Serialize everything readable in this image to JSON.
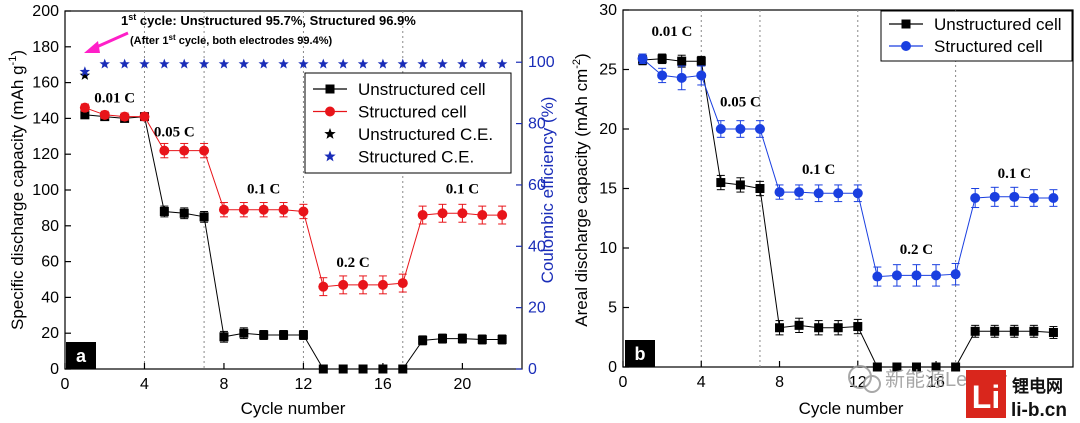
{
  "chart_data": [
    {
      "panel": "a",
      "type": "line",
      "xlabel": "Cycle number",
      "ylabel": "Specific discharge capacity (mAh g-1)",
      "ylabel_parts": [
        "Specific discharge capacity (mAh g",
        "-1",
        ")"
      ],
      "y2label": "Coulombic efficiency (%)",
      "xlim": [
        0,
        23
      ],
      "ylim": [
        0,
        200
      ],
      "y2lim": [
        0,
        116.7
      ],
      "xticks": [
        0,
        4,
        8,
        12,
        16,
        20
      ],
      "yticks": [
        0,
        20,
        40,
        60,
        80,
        100,
        120,
        140,
        160,
        180,
        200
      ],
      "y2ticks": [
        0,
        20,
        40,
        60,
        80,
        100
      ],
      "dividers": [
        4,
        7,
        12,
        17
      ],
      "rate_labels": [
        {
          "text": "0.01 C",
          "x": 2.5,
          "y": 149
        },
        {
          "text": "0.05 C",
          "x": 5.5,
          "y": 130
        },
        {
          "text": "0.1 C",
          "x": 10,
          "y": 98
        },
        {
          "text": "0.2 C",
          "x": 14.5,
          "y": 57
        },
        {
          "text": "0.1 C",
          "x": 20,
          "y": 98
        }
      ],
      "annotation": {
        "line1_parts": [
          "1",
          "st",
          " cycle: Unstructured 95.7%, Structured 96.9%"
        ],
        "line2_parts": [
          "(After 1",
          "st",
          " cycle, both electrodes 99.4%)"
        ]
      },
      "series": [
        {
          "name": "Unstructured cell",
          "axis": "left",
          "color": "#000000",
          "marker": "square",
          "x": [
            1,
            2,
            3,
            4,
            5,
            6,
            7,
            8,
            9,
            10,
            11,
            12,
            13,
            14,
            15,
            16,
            17,
            18,
            19,
            20,
            21,
            22
          ],
          "y": [
            142,
            141,
            140,
            141,
            88,
            87,
            85,
            18,
            20,
            19,
            19,
            19,
            0,
            0,
            0,
            0,
            0,
            16,
            17,
            17,
            16.5,
            16.5
          ],
          "err": [
            2,
            2,
            2,
            2,
            3,
            3,
            3,
            3,
            3,
            2.5,
            2.5,
            2.5,
            1,
            1,
            1,
            1,
            1,
            2.5,
            2.5,
            2.5,
            2.5,
            2.5
          ]
        },
        {
          "name": "Structured cell",
          "axis": "left",
          "color": "#e8141a",
          "marker": "circle",
          "x": [
            1,
            2,
            3,
            4,
            5,
            6,
            7,
            8,
            9,
            10,
            11,
            12,
            13,
            14,
            15,
            16,
            17,
            18,
            19,
            20,
            21,
            22
          ],
          "y": [
            146,
            142,
            141,
            141,
            122,
            122,
            122,
            89,
            89,
            89,
            89,
            88,
            46,
            47,
            47,
            47,
            48,
            86,
            87,
            87,
            86,
            86
          ],
          "err": [
            2,
            2,
            2,
            2,
            4,
            4,
            4,
            4,
            4,
            4,
            4,
            4,
            5,
            5,
            5,
            5,
            5,
            5,
            5,
            5,
            5,
            5
          ]
        },
        {
          "name": "Unstructured C.E.",
          "axis": "right",
          "color": "#000000",
          "marker": "star",
          "x": [
            1
          ],
          "y": [
            95.7
          ]
        },
        {
          "name": "Structured C.E.",
          "axis": "right",
          "color": "#1a2db8",
          "marker": "star",
          "x": [
            1,
            2,
            3,
            4,
            5,
            6,
            7,
            8,
            9,
            10,
            11,
            12,
            13,
            14,
            15,
            16,
            17,
            18,
            19,
            20,
            21,
            22
          ],
          "y": [
            96.9,
            99.4,
            99.4,
            99.4,
            99.4,
            99.4,
            99.4,
            99.4,
            99.4,
            99.4,
            99.4,
            99.4,
            99.4,
            99.4,
            99.4,
            99.4,
            99.4,
            99.4,
            99.4,
            99.4,
            99.4,
            99.4
          ]
        }
      ]
    },
    {
      "panel": "b",
      "type": "line",
      "xlabel": "Cycle number",
      "ylabel": "Areal discharge capacity (mAh cm-2)",
      "ylabel_parts": [
        "Areal discharge capacity (mAh cm",
        "-2",
        ")"
      ],
      "xlim": [
        0,
        23
      ],
      "ylim": [
        0,
        30
      ],
      "xticks": [
        0,
        4,
        8,
        12,
        16
      ],
      "yticks": [
        0,
        5,
        10,
        15,
        20,
        25,
        30
      ],
      "dividers": [
        4,
        7,
        12,
        17
      ],
      "rate_labels": [
        {
          "text": "0.01 C",
          "x": 2.5,
          "y": 27.8
        },
        {
          "text": "0.05 C",
          "x": 6,
          "y": 21.9
        },
        {
          "text": "0.1 C",
          "x": 10,
          "y": 16.2
        },
        {
          "text": "0.2 C",
          "x": 15,
          "y": 9.5
        },
        {
          "text": "0.1 C",
          "x": 20,
          "y": 15.9
        }
      ],
      "series": [
        {
          "name": "Unstructured cell",
          "color": "#000000",
          "marker": "square",
          "x": [
            1,
            2,
            3,
            4,
            5,
            6,
            7,
            8,
            9,
            10,
            11,
            12,
            13,
            14,
            15,
            16,
            17,
            18,
            19,
            20,
            21,
            22
          ],
          "y": [
            25.8,
            25.9,
            25.7,
            25.7,
            15.5,
            15.3,
            15.0,
            3.3,
            3.5,
            3.3,
            3.3,
            3.4,
            0,
            0,
            0,
            0,
            0,
            3.0,
            3.0,
            3.0,
            3.0,
            2.9
          ],
          "err": [
            0.4,
            0.4,
            0.5,
            0.4,
            0.6,
            0.6,
            0.6,
            0.6,
            0.6,
            0.6,
            0.6,
            0.6,
            0.2,
            0.2,
            0.2,
            0.2,
            0.2,
            0.5,
            0.5,
            0.5,
            0.5,
            0.5
          ]
        },
        {
          "name": "Structured cell",
          "color": "#1a3fe0",
          "marker": "circle",
          "x": [
            1,
            2,
            3,
            4,
            5,
            6,
            7,
            8,
            9,
            10,
            11,
            12,
            13,
            14,
            15,
            16,
            17,
            18,
            19,
            20,
            21,
            22
          ],
          "y": [
            25.9,
            24.5,
            24.3,
            24.5,
            20.0,
            20.0,
            20.0,
            14.7,
            14.7,
            14.6,
            14.6,
            14.6,
            7.6,
            7.7,
            7.7,
            7.7,
            7.8,
            14.2,
            14.3,
            14.3,
            14.2,
            14.2
          ],
          "err": [
            0.4,
            0.6,
            1.0,
            0.8,
            0.7,
            0.7,
            0.7,
            0.6,
            0.6,
            0.7,
            0.7,
            0.7,
            0.8,
            0.9,
            0.9,
            0.9,
            0.9,
            0.8,
            0.8,
            0.8,
            0.7,
            0.7
          ]
        }
      ]
    }
  ],
  "watermark": {
    "wechat_text": "新能源Leader",
    "logo_letters": "Li",
    "logo_cn": "锂电网",
    "site": "li-b.cn"
  }
}
